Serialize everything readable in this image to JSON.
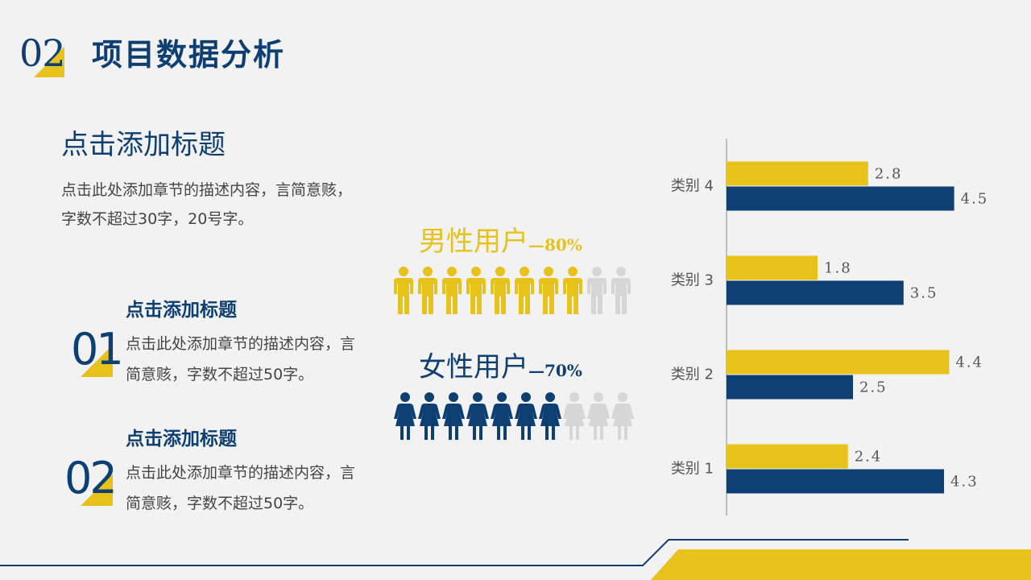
{
  "header": {
    "number": "02",
    "title": "项目数据分析"
  },
  "main": {
    "title": "点击添加标题",
    "description": "点击此处添加章节的描述内容，言简意赅，字数不超过30字，20号字。"
  },
  "items": [
    {
      "number": "01",
      "title": "点击添加标题",
      "description": "点击此处添加章节的描述内容，言简意赅，字数不超过50字。"
    },
    {
      "number": "02",
      "title": "点击添加标题",
      "description": "点击此处添加章节的描述内容，言简意赅，字数不超过50字。"
    }
  ],
  "users": {
    "male": {
      "label": "男性用户",
      "percent": "—80%",
      "filled": 8,
      "total": 10
    },
    "female": {
      "label": "女性用户",
      "percent": "—70%",
      "filled": 7,
      "total": 10
    }
  },
  "colors": {
    "navy": "#0e3f73",
    "yellow": "#e6c21a",
    "gray": "#d6d6d6"
  },
  "chart_data": {
    "type": "bar",
    "orientation": "horizontal",
    "categories": [
      "类别 1",
      "类别 2",
      "类别 3",
      "类别 4"
    ],
    "series": [
      {
        "color": "#e6c21a",
        "values": [
          2.4,
          4.4,
          1.8,
          2.8
        ]
      },
      {
        "color": "#0e3f73",
        "values": [
          4.3,
          2.5,
          3.5,
          4.5
        ]
      }
    ],
    "xlim": [
      0,
      5
    ],
    "grid": false,
    "data_labels": true
  }
}
